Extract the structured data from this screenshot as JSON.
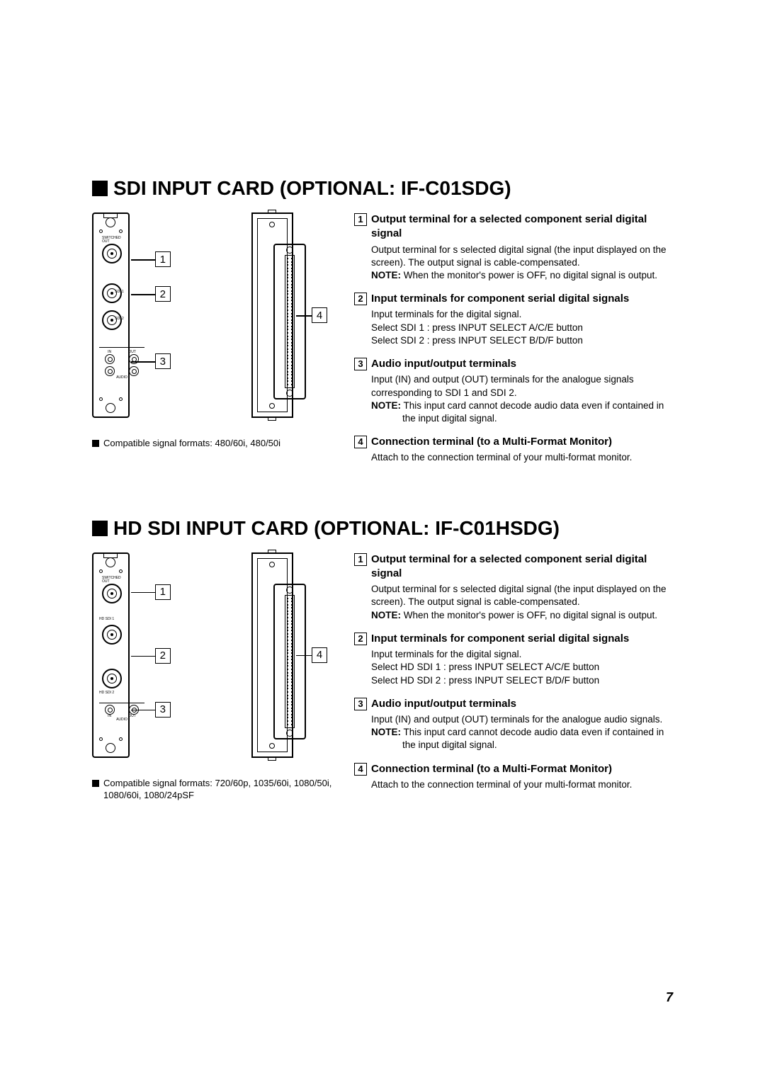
{
  "page_number": "7",
  "sections": [
    {
      "title": "SDI INPUT CARD (OPTIONAL: IF-C01SDG)",
      "compat": "Compatible signal formats:  480/60i, 480/50i",
      "panel_labels": {
        "switched_out": "SWITCHED OUT",
        "sdi1": "SDI 1",
        "sdi2": "SDI 2",
        "in": "IN",
        "out": "OUT",
        "audio": "AUDIO"
      },
      "callouts": [
        "1",
        "2",
        "3",
        "4"
      ],
      "items": [
        {
          "num": "1",
          "title": "Output terminal for a selected component serial digital signal",
          "body": "Output terminal for s selected digital signal (the input displayed on the screen). The output signal is cable-compensated.",
          "note": "When the monitor's power is OFF, no digital signal is output."
        },
        {
          "num": "2",
          "title": "Input terminals for component serial digital signals",
          "body": "Input terminals for the digital signal.",
          "select1": "Select SDI 1  : press INPUT SELECT A/C/E button",
          "select2": "Select SDI 2  : press INPUT SELECT B/D/F button"
        },
        {
          "num": "3",
          "title": "Audio input/output terminals",
          "body": "Input (IN) and output (OUT) terminals for the analogue signals corresponding to SDI 1 and SDI 2.",
          "note": "This input card cannot decode audio data even if contained in the input digital signal."
        },
        {
          "num": "4",
          "title": "Connection terminal (to a Multi-Format Monitor)",
          "body": "Attach to the connection terminal of your multi-format monitor."
        }
      ]
    },
    {
      "title": "HD SDI INPUT CARD (OPTIONAL: IF-C01HSDG)",
      "compat": "Compatible signal formats: 720/60p, 1035/60i, 1080/50i, 1080/60i, 1080/24pSF",
      "panel_labels": {
        "switched_out": "SWITCHED OUT",
        "sdi1": "HD SDI 1",
        "sdi2": "HD SDI 2",
        "in": "IN",
        "out": "OUT",
        "audio": "AUDIO"
      },
      "callouts": [
        "1",
        "2",
        "3",
        "4"
      ],
      "items": [
        {
          "num": "1",
          "title": "Output terminal for a selected component serial digital signal",
          "body": "Output terminal for s selected digital signal (the input displayed on the screen). The output signal is cable-compensated.",
          "note": "When the monitor's power is OFF, no digital signal is output."
        },
        {
          "num": "2",
          "title": "Input terminals for component serial digital signals",
          "body": "Input terminals for the digital signal.",
          "select1": "Select HD SDI 1  : press INPUT SELECT A/C/E button",
          "select2": "Select HD SDI 2  : press INPUT SELECT B/D/F button"
        },
        {
          "num": "3",
          "title": "Audio input/output terminals",
          "body": "Input (IN) and output (OUT) terminals for the analogue audio signals.",
          "note": "This input card cannot decode audio data even if contained in the input digital signal."
        },
        {
          "num": "4",
          "title": "Connection terminal (to a Multi-Format Monitor)",
          "body": "Attach to the connection terminal of your multi-format monitor."
        }
      ]
    }
  ]
}
